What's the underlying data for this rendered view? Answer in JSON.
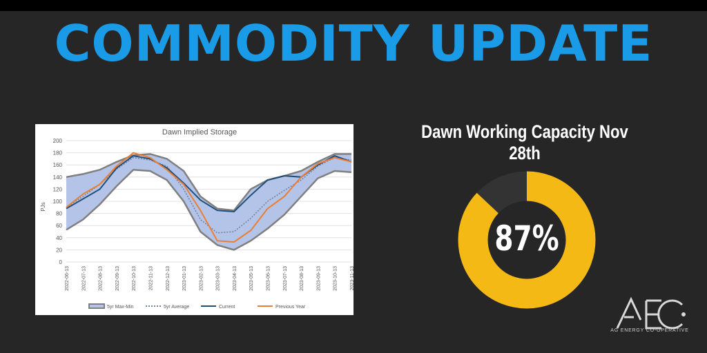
{
  "header": {
    "title": "COMMODITY UPDATE"
  },
  "capacity": {
    "title": "Dawn Working Capacity Nov 28th",
    "percent": 87,
    "percent_label": "87%",
    "fill_color": "#f5b915",
    "rest_color": "#333333"
  },
  "logo": {
    "mark": "AEC",
    "tagline": "AG ENERGY CO-OPERATIVE"
  },
  "colors": {
    "headline": "#1a9be8",
    "band": "#b4c4e8",
    "band_edge": "#7f7f7f",
    "current": "#1f4e79",
    "previous": "#ed7d31",
    "average": "#6f7f9a"
  },
  "chart_data": {
    "type": "line",
    "title": "Dawn Implied Storage",
    "xlabel": "",
    "ylabel": "PJs",
    "ylim": [
      0,
      200
    ],
    "yticks": [
      0,
      20,
      40,
      60,
      80,
      100,
      120,
      140,
      160,
      180,
      200
    ],
    "grid": true,
    "legend_position": "bottom",
    "x": [
      "2022-06-13",
      "2022-07-13",
      "2022-08-13",
      "2022-09-13",
      "2022-10-13",
      "2022-11-13",
      "2022-12-13",
      "2023-01-13",
      "2023-02-13",
      "2023-03-13",
      "2023-04-13",
      "2023-05-13",
      "2023-06-13",
      "2023-07-13",
      "2023-08-13",
      "2023-09-13",
      "2023-10-13",
      "2023-11-13"
    ],
    "series": [
      {
        "name": "5yr Max-Min",
        "kind": "band",
        "max": [
          140,
          145,
          152,
          165,
          176,
          178,
          170,
          150,
          108,
          88,
          85,
          120,
          135,
          142,
          150,
          165,
          178,
          178
        ],
        "min": [
          53,
          70,
          95,
          125,
          152,
          150,
          135,
          100,
          50,
          28,
          20,
          35,
          55,
          78,
          108,
          138,
          150,
          148
        ]
      },
      {
        "name": "5yr Average",
        "kind": "dotted",
        "values": [
          90,
          108,
          128,
          153,
          172,
          168,
          158,
          120,
          70,
          48,
          50,
          72,
          100,
          118,
          135,
          158,
          172,
          168
        ]
      },
      {
        "name": "Current",
        "kind": "line",
        "values": [
          88,
          104,
          120,
          155,
          175,
          170,
          155,
          130,
          102,
          85,
          83,
          110,
          135,
          142,
          140,
          160,
          175,
          165
        ]
      },
      {
        "name": "Previous Year",
        "kind": "line",
        "values": [
          90,
          112,
          128,
          158,
          180,
          172,
          152,
          128,
          85,
          35,
          33,
          52,
          88,
          108,
          140,
          162,
          172,
          165
        ]
      }
    ]
  }
}
